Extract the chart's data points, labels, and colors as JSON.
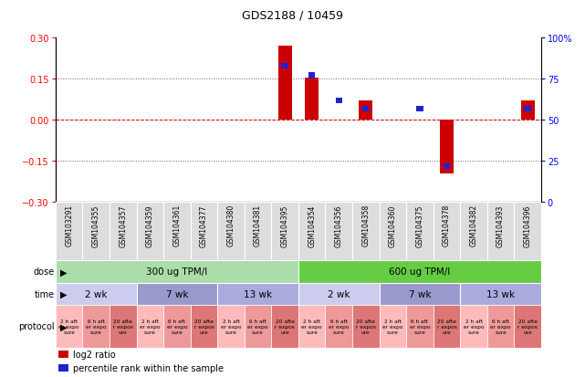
{
  "title": "GDS2188 / 10459",
  "samples": [
    "GSM103291",
    "GSM104355",
    "GSM104357",
    "GSM104359",
    "GSM104361",
    "GSM104377",
    "GSM104380",
    "GSM104381",
    "GSM104395",
    "GSM104354",
    "GSM104356",
    "GSM104358",
    "GSM104360",
    "GSM104375",
    "GSM104378",
    "GSM104382",
    "GSM104393",
    "GSM104396"
  ],
  "log2_ratio": [
    0.0,
    0.0,
    0.0,
    0.0,
    0.0,
    0.0,
    0.0,
    0.0,
    0.27,
    0.153,
    0.0,
    0.07,
    0.0,
    0.0,
    -0.195,
    0.0,
    0.0,
    0.07
  ],
  "percentile": [
    50,
    50,
    50,
    50,
    50,
    50,
    50,
    50,
    83,
    77,
    62,
    57,
    50,
    57,
    22,
    50,
    50,
    57
  ],
  "ylim_left": [
    -0.3,
    0.3
  ],
  "ylim_right": [
    0,
    100
  ],
  "yticks_left": [
    -0.3,
    -0.15,
    0.0,
    0.15,
    0.3
  ],
  "yticks_right": [
    0,
    25,
    50,
    75,
    100
  ],
  "bar_color_red": "#cc0000",
  "bar_color_blue": "#2222cc",
  "dose_groups": [
    {
      "label": "300 ug TPM/l",
      "start": 0,
      "end": 9,
      "color": "#aaddaa"
    },
    {
      "label": "600 ug TPM/l",
      "start": 9,
      "end": 18,
      "color": "#66cc44"
    }
  ],
  "time_groups": [
    {
      "label": "2 wk",
      "start": 0,
      "end": 3,
      "color": "#ccccee"
    },
    {
      "label": "7 wk",
      "start": 3,
      "end": 6,
      "color": "#9999cc"
    },
    {
      "label": "13 wk",
      "start": 6,
      "end": 9,
      "color": "#aaaadd"
    },
    {
      "label": "2 wk",
      "start": 9,
      "end": 12,
      "color": "#ccccee"
    },
    {
      "label": "7 wk",
      "start": 12,
      "end": 15,
      "color": "#9999cc"
    },
    {
      "label": "13 wk",
      "start": 15,
      "end": 18,
      "color": "#aaaadd"
    }
  ],
  "protocol_labels": [
    "2 h aft\ner expo\nsure",
    "6 h aft\ner expo\nsure",
    "20 afte\nr expos\nure"
  ],
  "protocol_colors": [
    "#ffbbbb",
    "#ee9999",
    "#dd7777"
  ],
  "legend_items": [
    {
      "label": "log2 ratio",
      "color": "#cc0000"
    },
    {
      "label": "percentile rank within the sample",
      "color": "#2222cc"
    }
  ]
}
